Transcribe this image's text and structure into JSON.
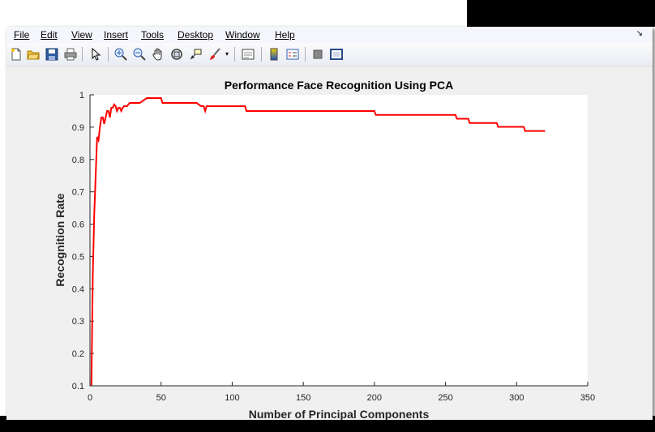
{
  "menu": {
    "items": [
      "File",
      "Edit",
      "View",
      "Insert",
      "Tools",
      "Desktop",
      "Window",
      "Help"
    ],
    "underline_index": [
      0,
      0,
      0,
      0,
      0,
      0,
      0,
      0
    ]
  },
  "toolbar": {
    "icons": [
      "new-figure-icon",
      "open-file-icon",
      "save-icon",
      "print-icon",
      "select-arrow-icon",
      "zoom-in-icon",
      "zoom-out-icon",
      "pan-hand-icon",
      "rotate-3d-icon",
      "data-cursor-icon",
      "brush-icon",
      "link-plot-icon",
      "colorbar-icon",
      "legend-icon",
      "hide-plot-tools-icon",
      "show-plot-tools-icon"
    ]
  },
  "chart_data": {
    "type": "line",
    "title": "Performance Face Recognition Using PCA",
    "xlabel": "Number of Principal Components",
    "ylabel": "Recognition Rate",
    "xlim": [
      0,
      350
    ],
    "ylim": [
      0.1,
      1
    ],
    "xticks": [
      0,
      50,
      100,
      150,
      200,
      250,
      300,
      350
    ],
    "yticks": [
      0.1,
      0.2,
      0.3,
      0.4,
      0.5,
      0.6,
      0.7,
      0.8,
      0.9,
      1
    ],
    "grid": false,
    "color": "#ff0000",
    "series": [
      {
        "x": [
          1,
          2,
          3,
          4,
          5,
          6,
          7,
          8,
          9,
          10,
          11,
          12,
          13,
          14,
          15,
          16,
          17,
          18,
          19,
          20,
          21,
          22,
          23,
          24,
          26,
          28,
          30,
          35,
          40,
          45,
          50,
          51,
          55,
          60,
          65,
          70,
          75,
          78,
          79,
          80,
          81,
          82,
          84,
          86,
          90,
          100,
          109,
          110,
          150,
          200,
          201,
          250,
          257,
          258,
          266,
          267,
          280,
          286,
          287,
          300,
          305,
          306,
          320
        ],
        "y": [
          0.1,
          0.45,
          0.63,
          0.75,
          0.87,
          0.86,
          0.9,
          0.93,
          0.93,
          0.91,
          0.93,
          0.95,
          0.95,
          0.93,
          0.96,
          0.96,
          0.97,
          0.965,
          0.95,
          0.96,
          0.96,
          0.95,
          0.96,
          0.965,
          0.965,
          0.975,
          0.975,
          0.975,
          0.99,
          0.99,
          0.99,
          0.975,
          0.975,
          0.975,
          0.975,
          0.975,
          0.975,
          0.965,
          0.965,
          0.965,
          0.95,
          0.965,
          0.965,
          0.965,
          0.965,
          0.965,
          0.965,
          0.95,
          0.95,
          0.95,
          0.938,
          0.938,
          0.938,
          0.926,
          0.926,
          0.913,
          0.913,
          0.913,
          0.901,
          0.901,
          0.901,
          0.888,
          0.888
        ]
      }
    ]
  }
}
